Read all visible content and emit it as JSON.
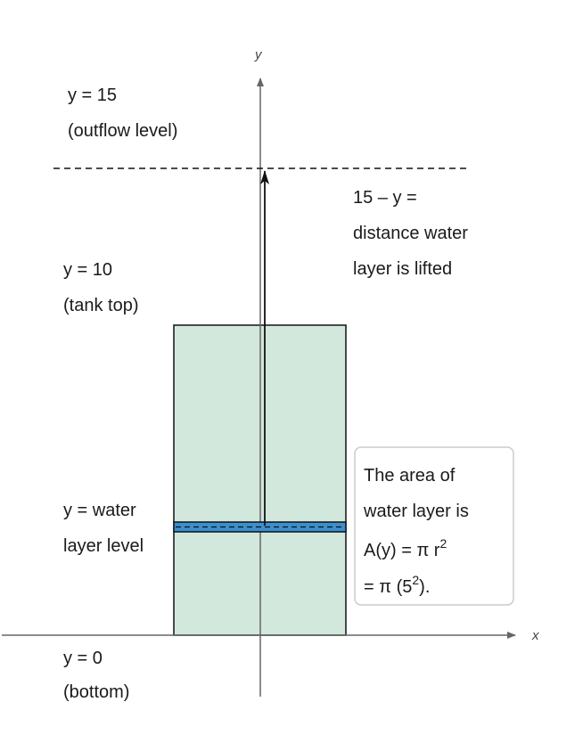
{
  "axes": {
    "x_label": "x",
    "y_label": "y"
  },
  "labels": {
    "outflow": {
      "line1": "y =  15",
      "line2": "(outflow level)"
    },
    "tank_top": {
      "line1": "y =  10",
      "line2": "(tank top)"
    },
    "water_layer": {
      "line1": "y =  water",
      "line2": "layer level"
    },
    "bottom": {
      "line1": "y =  0",
      "line2": "(bottom)"
    },
    "distance": {
      "line1": "15 – y =",
      "line2": "distance water",
      "line3": "layer is lifted"
    }
  },
  "area_box": {
    "line1": "The area of",
    "line2": "water layer is",
    "line3_main": "A(y) = π r",
    "line3_sup": "2",
    "line4_a": " = π (5",
    "line4_sup": "2",
    "line4_b": ")."
  },
  "colors": {
    "tank_fill": "#d3e8dc",
    "layer_fill": "#3a8fd0",
    "axis": "#666666",
    "stroke": "#111111",
    "box_border": "#cccccc"
  }
}
